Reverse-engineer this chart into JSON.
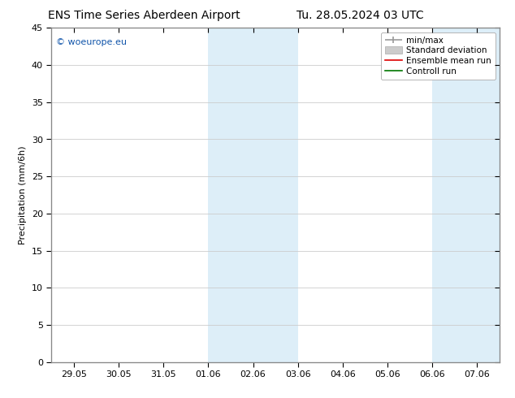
{
  "title_left": "ENS Time Series Aberdeen Airport",
  "title_right": "Tu. 28.05.2024 03 UTC",
  "ylabel": "Precipitation (mm/6h)",
  "ylim": [
    0,
    45
  ],
  "yticks": [
    0,
    5,
    10,
    15,
    20,
    25,
    30,
    35,
    40,
    45
  ],
  "x_labels": [
    "29.05",
    "30.05",
    "31.05",
    "01.06",
    "02.06",
    "03.06",
    "04.06",
    "05.06",
    "06.06",
    "07.06"
  ],
  "x_positions": [
    0,
    1,
    2,
    3,
    4,
    5,
    6,
    7,
    8,
    9
  ],
  "xlim": [
    -0.5,
    9.5
  ],
  "shade_bands": [
    {
      "xmin": 3.0,
      "xmax": 5.0,
      "color": "#ddeef8"
    },
    {
      "xmin": 8.0,
      "xmax": 9.5,
      "color": "#ddeef8"
    }
  ],
  "legend_items": [
    {
      "label": "min/max",
      "color": "#999999",
      "lw": 1.2
    },
    {
      "label": "Standard deviation",
      "facecolor": "#cccccc",
      "edgecolor": "#aaaaaa"
    },
    {
      "label": "Ensemble mean run",
      "color": "#dd0000",
      "lw": 1.2
    },
    {
      "label": "Controll run",
      "color": "#007700",
      "lw": 1.2
    }
  ],
  "watermark": "© woeurope.eu",
  "watermark_color": "#1155aa",
  "background_color": "#ffffff",
  "plot_bg_color": "#ffffff",
  "grid_color": "#cccccc",
  "title_fontsize": 10,
  "ylabel_fontsize": 8,
  "tick_fontsize": 8,
  "legend_fontsize": 7.5
}
